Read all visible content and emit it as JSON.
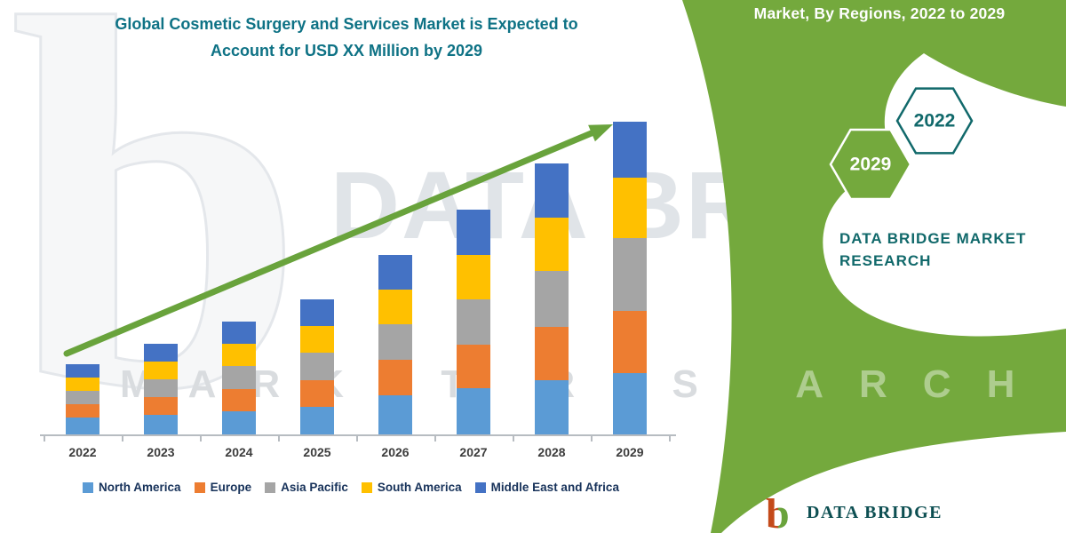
{
  "header": {
    "title_line1": "Global Cosmetic Surgery and Services Market is Expected to",
    "title_line2": "Account for USD XX Million by 2029",
    "right_title": "Market, By Regions, 2022 to 2029"
  },
  "brand": {
    "green": "#74A93D",
    "teal": "#11696B",
    "title_color": "#0E7285",
    "hex_back_label": "2029",
    "hex_front_label": "2022",
    "panel_line1": "DATA BRIDGE MARKET",
    "panel_line2": "RESEARCH",
    "footer_logo_text": "DATA BRIDGE",
    "footer_logo_letter": "b",
    "watermark_big": "DATA BRIDGE",
    "watermark_wide": "MARKET RESEARCH",
    "watermark_letter": "b"
  },
  "chart_data": {
    "type": "bar",
    "stacked": true,
    "title": "Global Cosmetic Surgery and Services Market is Expected to Account for USD XX Million by 2029",
    "xlabel": "",
    "ylabel": "",
    "y_axis_visible": false,
    "values_unit": "USD Million (axis values not shown; relative units estimated from bar heights)",
    "legend_position": "bottom",
    "trend_arrow": true,
    "trend_arrow_color": "#69A33C",
    "categories": [
      "2022",
      "2023",
      "2024",
      "2025",
      "2026",
      "2027",
      "2028",
      "2029"
    ],
    "series": [
      {
        "name": "North America",
        "color": "#5B9BD5",
        "values": [
          20,
          23,
          27,
          32,
          45,
          53,
          62,
          70
        ]
      },
      {
        "name": "Europe",
        "color": "#ED7D31",
        "values": [
          15,
          20,
          25,
          30,
          40,
          49,
          60,
          70
        ]
      },
      {
        "name": "Asia Pacific",
        "color": "#A5A5A5",
        "values": [
          15,
          20,
          26,
          31,
          40,
          51,
          63,
          82
        ]
      },
      {
        "name": "South America",
        "color": "#FFC000",
        "values": [
          15,
          20,
          25,
          30,
          39,
          50,
          60,
          68
        ]
      },
      {
        "name": "Middle East and Africa",
        "color": "#4472C4",
        "values": [
          15,
          20,
          25,
          30,
          39,
          51,
          61,
          63
        ]
      }
    ]
  }
}
